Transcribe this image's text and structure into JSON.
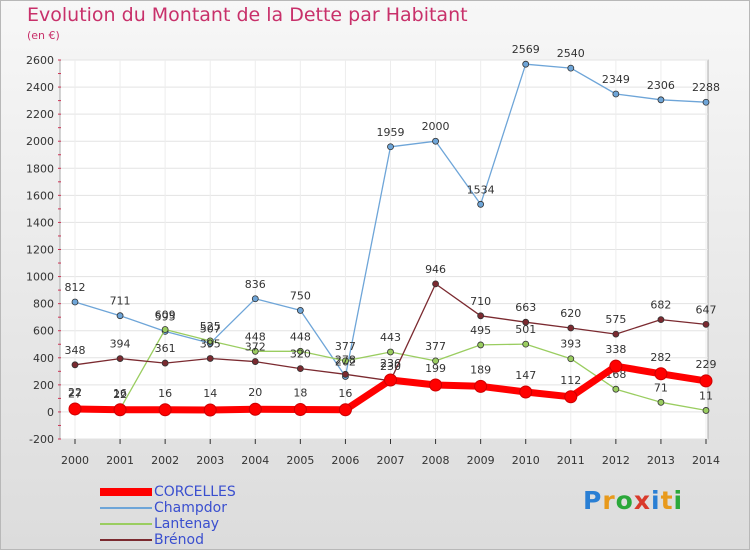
{
  "title": "Evolution du Montant de la Dette par Habitant",
  "subtitle": "(en €)",
  "logo": {
    "letters": [
      "P",
      "r",
      "o",
      "x",
      "i",
      "t",
      "i"
    ],
    "colors": [
      "#2a7fd4",
      "#e89a1c",
      "#2ba83a",
      "#d93a2b",
      "#2a7fd4",
      "#e89a1c",
      "#2ba83a"
    ]
  },
  "chart_data": {
    "type": "line",
    "x": [
      2000,
      2001,
      2002,
      2003,
      2004,
      2005,
      2006,
      2007,
      2008,
      2009,
      2010,
      2011,
      2012,
      2013,
      2014
    ],
    "xlabel": "",
    "ylabel": "",
    "ylim": [
      -200,
      2600
    ],
    "yticks": [
      -200,
      0,
      200,
      400,
      600,
      800,
      1000,
      1200,
      1400,
      1600,
      1800,
      2000,
      2200,
      2400,
      2600
    ],
    "grid": true,
    "legend_position": "bottom",
    "series": [
      {
        "name": "CORCELLES",
        "color": "#ff0000",
        "values": [
          22,
          16,
          16,
          14,
          20,
          18,
          16,
          236,
          199,
          189,
          147,
          112,
          338,
          282,
          229
        ]
      },
      {
        "name": "Champdor",
        "color": "#6ea5d8",
        "values": [
          812,
          711,
          595,
          507,
          836,
          750,
          262,
          1959,
          2000,
          1534,
          2569,
          2540,
          2349,
          2306,
          2288
        ]
      },
      {
        "name": "Lantenay",
        "color": "#9acd60",
        "values": [
          27,
          22,
          609,
          525,
          448,
          448,
          377,
          443,
          377,
          495,
          501,
          393,
          168,
          71,
          11
        ]
      },
      {
        "name": "Brénod",
        "color": "#7b2a30",
        "values": [
          348,
          394,
          361,
          395,
          372,
          320,
          278,
          230,
          946,
          710,
          663,
          620,
          575,
          682,
          647
        ]
      }
    ]
  }
}
